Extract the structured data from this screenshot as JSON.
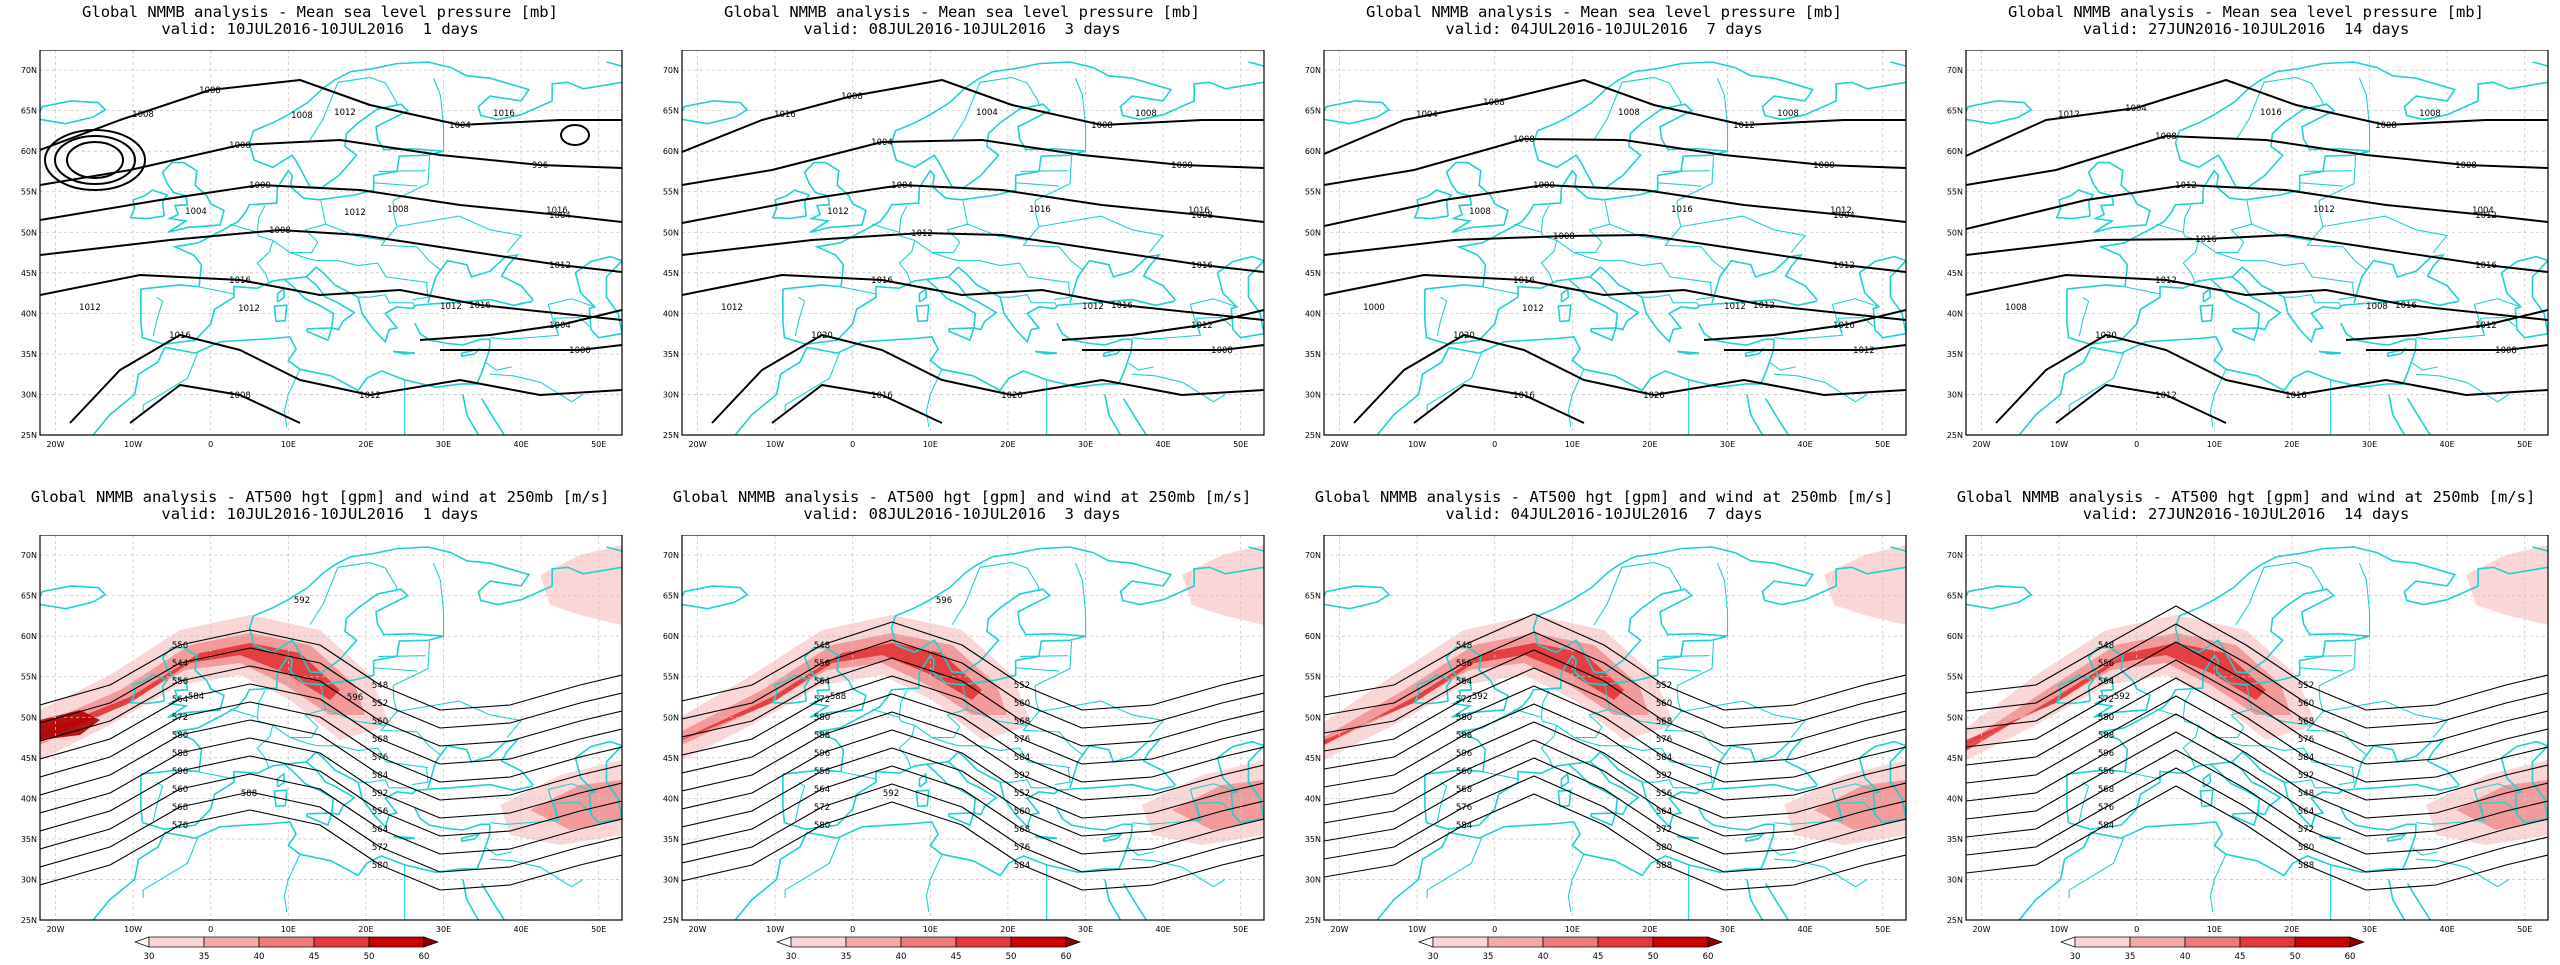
{
  "colors": {
    "coast": "#1fd0d0",
    "contour": "#000000",
    "grid": "#c8c8c8",
    "wind_light": "#f8c8c8",
    "wind_mid": "#f08080",
    "wind_dark": "#e02020",
    "wind_max": "#b00000"
  },
  "axes": {
    "lat_labels": [
      "70N",
      "65N",
      "60N",
      "55N",
      "50N",
      "45N",
      "40N",
      "35N",
      "30N",
      "25N"
    ],
    "lon_labels": [
      "20W",
      "10W",
      "0",
      "10E",
      "20E",
      "30E",
      "40E",
      "50E"
    ]
  },
  "rows": [
    {
      "title_line1": "Global NMMB analysis - Mean sea level pressure [mb]",
      "field": "mslp",
      "panels": [
        {
          "valid": "valid: 10JUL2016-10JUL2016  1 days",
          "contour_labels": [
            "1008",
            "1004",
            "1000",
            "996",
            "1000",
            "1004",
            "1008",
            "1012",
            "1016",
            "1016",
            "1016",
            "1012",
            "1008",
            "1004",
            "1000",
            "1012",
            "1008",
            "1012",
            "1016",
            "1016",
            "1012",
            "1008",
            "1004",
            "1012",
            "1008",
            "1012"
          ]
        },
        {
          "valid": "valid: 08JUL2016-10JUL2016  3 days",
          "contour_labels": [
            "1008",
            "1008",
            "1004",
            "1000",
            "1004",
            "1008",
            "1012",
            "1016",
            "1016",
            "1016",
            "1020",
            "1020",
            "1016",
            "1012",
            "1008",
            "1004",
            "1016",
            "1012",
            "1008",
            "1016",
            "1012",
            "1016",
            "1012"
          ]
        },
        {
          "valid": "valid: 04JUL2016-10JUL2016  7 days",
          "contour_labels": [
            "1008",
            "1012",
            "1008",
            "1000",
            "1000",
            "1004",
            "1008",
            "1012",
            "1016",
            "1012",
            "1020",
            "1020",
            "1016",
            "1016",
            "1012",
            "1008",
            "1016",
            "1012",
            "1008",
            "1012",
            "1000",
            "1004",
            "1008",
            "1012"
          ]
        },
        {
          "valid": "valid: 27JUN2016-10JUL2016  14 days",
          "contour_labels": [
            "1004",
            "1008",
            "1008",
            "1008",
            "1012",
            "1012",
            "1016",
            "1016",
            "1012",
            "1016",
            "1020",
            "1016",
            "1012",
            "1012",
            "1008",
            "1016",
            "1012",
            "1008",
            "1008",
            "1004",
            "1008",
            "1012"
          ]
        }
      ]
    },
    {
      "title_line1": "Global NMMB analysis - AT500 hgt [gpm] and wind at 250mb [m/s]",
      "field": "z500",
      "panels": [
        {
          "valid": "valid: 10JUL2016-10JUL2016  1 days",
          "contour_labels": [
            "556",
            "548",
            "544",
            "552",
            "556",
            "560",
            "564",
            "568",
            "572",
            "576",
            "580",
            "584",
            "588",
            "592",
            "596",
            "556",
            "560",
            "564",
            "568",
            "572",
            "576",
            "580",
            "584",
            "588",
            "592",
            "596"
          ]
        },
        {
          "valid": "valid: 08JUL2016-10JUL2016  3 days",
          "contour_labels": [
            "548",
            "552",
            "556",
            "560",
            "564",
            "568",
            "572",
            "576",
            "580",
            "584",
            "588",
            "592",
            "596",
            "552",
            "556",
            "560",
            "564",
            "568",
            "572",
            "576",
            "580",
            "584",
            "588",
            "592",
            "596"
          ]
        },
        {
          "valid": "valid: 04JUL2016-10JUL2016  7 days",
          "contour_labels": [
            "548",
            "552",
            "556",
            "560",
            "564",
            "568",
            "572",
            "576",
            "580",
            "584",
            "588",
            "592",
            "596",
            "556",
            "560",
            "564",
            "568",
            "572",
            "576",
            "580",
            "584",
            "588",
            "592"
          ]
        },
        {
          "valid": "valid: 27JUN2016-10JUL2016  14 days",
          "contour_labels": [
            "548",
            "552",
            "556",
            "560",
            "564",
            "568",
            "572",
            "576",
            "580",
            "584",
            "588",
            "592",
            "596",
            "548",
            "556",
            "564",
            "568",
            "572",
            "576",
            "580",
            "584",
            "588",
            "592"
          ]
        }
      ],
      "colorbar": {
        "ticks": [
          "30",
          "35",
          "40",
          "45",
          "50",
          "60"
        ]
      }
    }
  ]
}
